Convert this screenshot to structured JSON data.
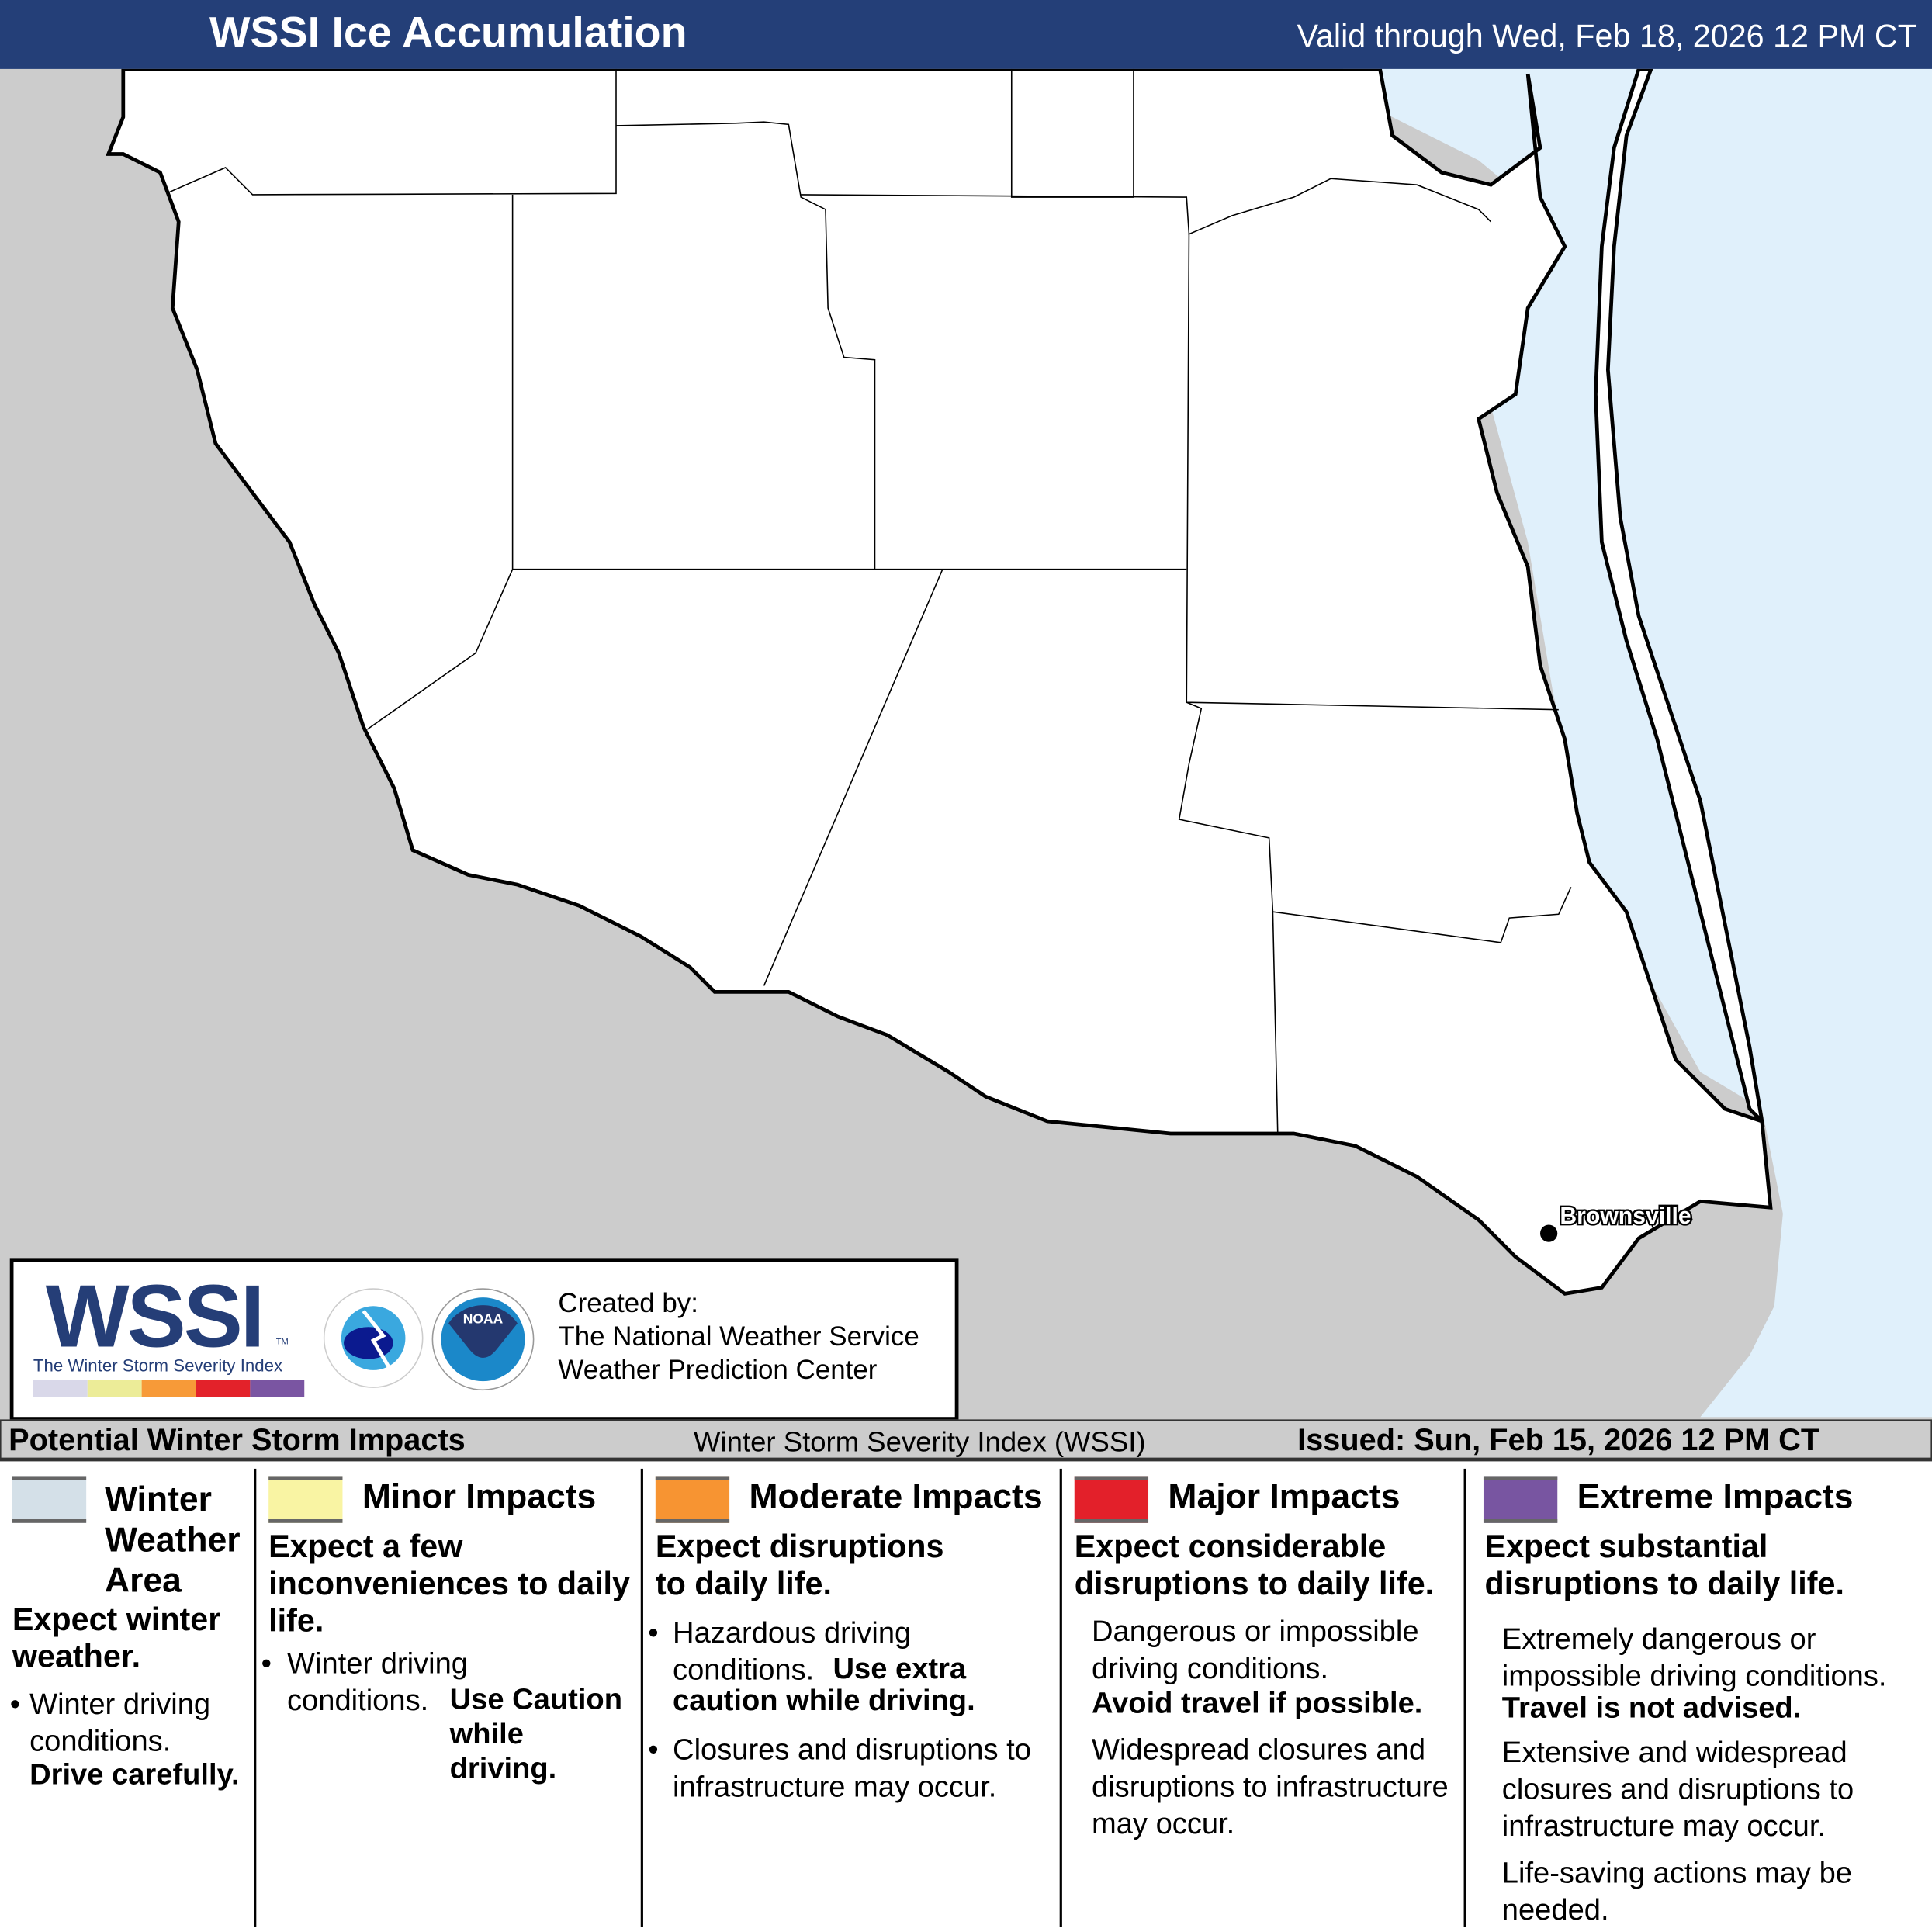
{
  "header": {
    "title": "WSSI Ice Accumulation",
    "valid": "Valid through Wed, Feb 18, 2026 12 PM CT"
  },
  "map": {
    "city": "Brownsville",
    "colors": {
      "land": "#ffffff",
      "mexico": "#cccccc",
      "water": "#e0f0fb"
    }
  },
  "logo": {
    "wssi": "WSSI",
    "tm": "TM",
    "subtitle": "The Winter Storm Severity Index",
    "nws_text": "NATIONAL WEATHER SERVICE",
    "noaa_text": "NOAA",
    "credit": [
      "Created by:",
      "The National Weather Service",
      "Weather Prediction Center"
    ]
  },
  "legend_bar": {
    "left": "Potential Winter Storm Impacts",
    "center": "Winter Storm Severity Index (WSSI)",
    "right": "Issued: Sun, Feb 15, 2026 12 PM CT"
  },
  "categories": [
    {
      "title": "Winter Weather Area",
      "color": "#d4e0e8",
      "summary": "Expect winter weather.",
      "bullet1a": "Winter driving conditions.",
      "bullet1b": "Drive carefully."
    },
    {
      "title": "Minor Impacts",
      "color": "#f9f4a3",
      "summary": "Expect a few inconveniences to daily life.",
      "bullet1a": "Winter driving conditions.",
      "bullet1b": "Use Caution while driving."
    },
    {
      "title": "Moderate Impacts",
      "color": "#f79432",
      "summary": "Expect disruptions to daily life.",
      "bullet1a": "Hazardous driving conditions.",
      "bullet1b": "Use extra caution while driving.",
      "bullet2": "Closures and disruptions to infrastructure may occur."
    },
    {
      "title": "Major Impacts",
      "color": "#e3202a",
      "summary": "Expect considerable disruptions to daily life.",
      "bullet1a": "Dangerous or impossible driving conditions.",
      "bullet1b": "Avoid travel if possible.",
      "bullet2": "Widespread closures and disruptions to infrastructure may occur."
    },
    {
      "title": "Extreme Impacts",
      "color": "#7855a1",
      "summary": "Expect substantial disruptions to daily life.",
      "bullet1a": "Extremely dangerous or impossible driving conditions.",
      "bullet1b": "Travel is not advised.",
      "bullet2": "Extensive and widespread closures and disruptions to infrastructure may occur.",
      "bullet3": "Life-saving actions may be needed."
    }
  ]
}
